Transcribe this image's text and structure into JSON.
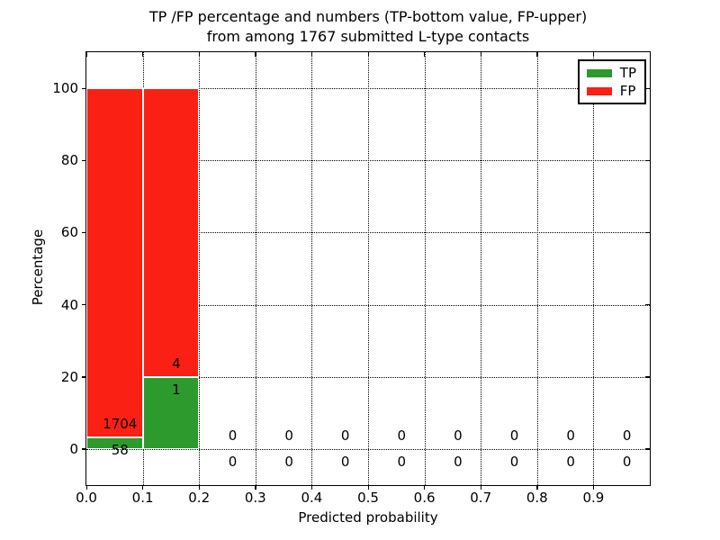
{
  "chart_data": {
    "type": "bar",
    "stacked": true,
    "title_line1": "TP /FP percentage and numbers (TP-bottom value, FP-upper)",
    "title_line2": "from among 1767 submitted L-type contacts",
    "xlabel": "Predicted probability",
    "ylabel": "Percentage",
    "xlim": [
      0.0,
      1.0
    ],
    "ylim": [
      -10,
      110
    ],
    "grid": true,
    "legend_position": "upper right",
    "series": [
      {
        "name": "TP",
        "color": "#2d9a2d"
      },
      {
        "name": "FP",
        "color": "#fa2014"
      }
    ],
    "xticks": [
      {
        "v": 0.0,
        "label": "0.0"
      },
      {
        "v": 0.1,
        "label": "0.1"
      },
      {
        "v": 0.2,
        "label": "0.2"
      },
      {
        "v": 0.3,
        "label": "0.3"
      },
      {
        "v": 0.4,
        "label": "0.4"
      },
      {
        "v": 0.5,
        "label": "0.5"
      },
      {
        "v": 0.6,
        "label": "0.6"
      },
      {
        "v": 0.7,
        "label": "0.7"
      },
      {
        "v": 0.8,
        "label": "0.8"
      },
      {
        "v": 0.9,
        "label": "0.9"
      }
    ],
    "yticks": [
      {
        "v": 0,
        "label": "0"
      },
      {
        "v": 20,
        "label": "20"
      },
      {
        "v": 40,
        "label": "40"
      },
      {
        "v": 60,
        "label": "60"
      },
      {
        "v": 80,
        "label": "80"
      },
      {
        "v": 100,
        "label": "100"
      }
    ],
    "bins": [
      {
        "x0": 0.0,
        "x1": 0.1,
        "tp": 58,
        "fp": 1704,
        "tp_pct": 3.29,
        "fp_pct": 96.71
      },
      {
        "x0": 0.1,
        "x1": 0.2,
        "tp": 1,
        "fp": 4,
        "tp_pct": 20.0,
        "fp_pct": 80.0
      },
      {
        "x0": 0.2,
        "x1": 0.3,
        "tp": 0,
        "fp": 0,
        "tp_pct": 0,
        "fp_pct": 0
      },
      {
        "x0": 0.3,
        "x1": 0.4,
        "tp": 0,
        "fp": 0,
        "tp_pct": 0,
        "fp_pct": 0
      },
      {
        "x0": 0.4,
        "x1": 0.5,
        "tp": 0,
        "fp": 0,
        "tp_pct": 0,
        "fp_pct": 0
      },
      {
        "x0": 0.5,
        "x1": 0.6,
        "tp": 0,
        "fp": 0,
        "tp_pct": 0,
        "fp_pct": 0
      },
      {
        "x0": 0.6,
        "x1": 0.7,
        "tp": 0,
        "fp": 0,
        "tp_pct": 0,
        "fp_pct": 0
      },
      {
        "x0": 0.7,
        "x1": 0.8,
        "tp": 0,
        "fp": 0,
        "tp_pct": 0,
        "fp_pct": 0
      },
      {
        "x0": 0.8,
        "x1": 0.9,
        "tp": 0,
        "fp": 0,
        "tp_pct": 0,
        "fp_pct": 0
      },
      {
        "x0": 0.9,
        "x1": 1.0,
        "tp": 0,
        "fp": 0,
        "tp_pct": 0,
        "fp_pct": 0
      }
    ]
  }
}
